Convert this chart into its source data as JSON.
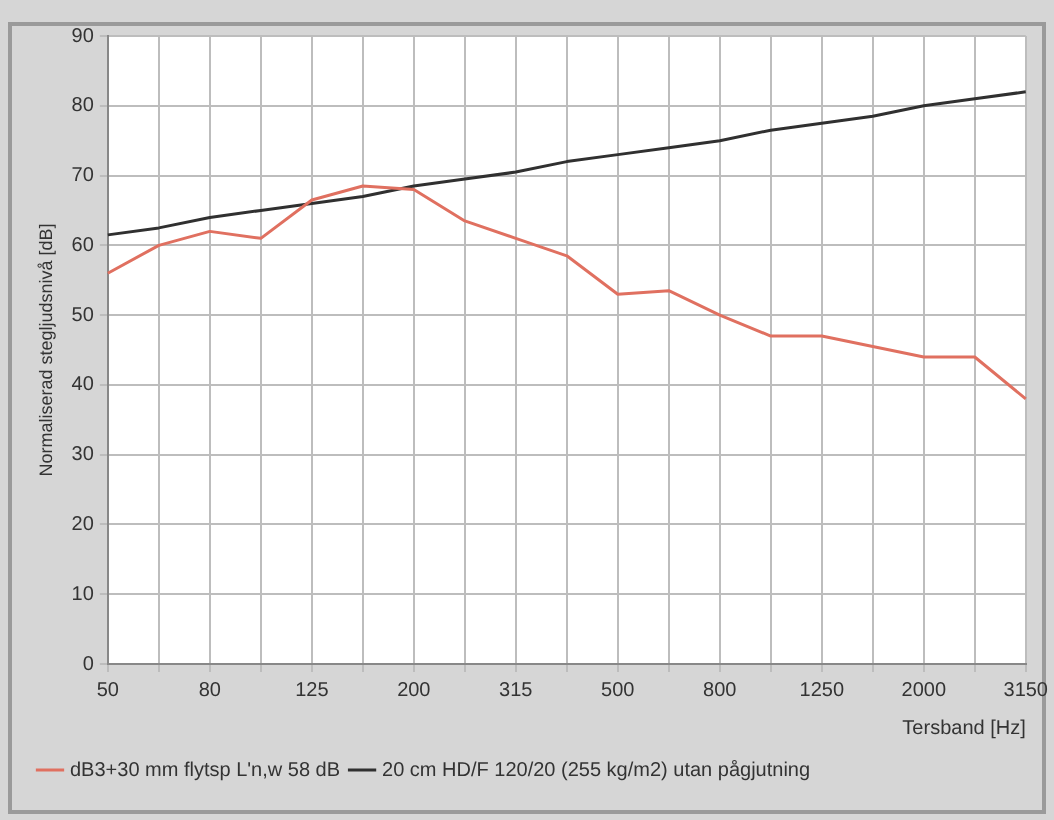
{
  "chart_data": {
    "type": "line",
    "xlabel": "Tersband [Hz]",
    "ylabel": "Normaliserad stegljudsnivå [dB]",
    "categories": [
      "50",
      null,
      "80",
      null,
      "125",
      null,
      "200",
      null,
      "315",
      null,
      "500",
      null,
      "800",
      null,
      "1250",
      null,
      "2000",
      null,
      "3150"
    ],
    "series": [
      {
        "name": "dB3+30 mm flytsp L'n,w 58 dB",
        "color": "#e07060",
        "values": [
          56,
          60,
          62,
          61,
          66.5,
          68.5,
          68,
          63.5,
          61,
          58.5,
          53,
          53.5,
          50,
          47,
          47,
          45.5,
          44,
          44,
          38
        ]
      },
      {
        "name": "20 cm HD/F 120/20 (255 kg/m2) utan pågjutning",
        "color": "#303030",
        "values": [
          61.5,
          62.5,
          64,
          65,
          66,
          67,
          68.5,
          69.5,
          70.5,
          72,
          73,
          74,
          75,
          76.5,
          77.5,
          78.5,
          80,
          81,
          82
        ]
      }
    ],
    "ylim": [
      0,
      90
    ],
    "yticks": [
      0,
      10,
      20,
      30,
      40,
      50,
      60,
      70,
      80,
      90
    ],
    "grid": true,
    "legend": "bottom left",
    "marker": "none",
    "line_style": "solid"
  }
}
